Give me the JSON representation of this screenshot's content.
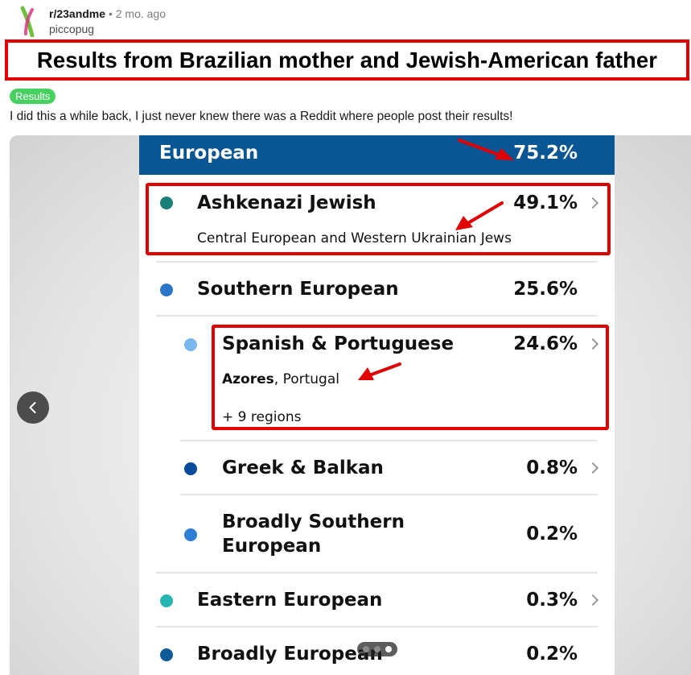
{
  "post": {
    "subreddit": "r/23andme",
    "separator": "•",
    "age": "2 mo. ago",
    "username": "piccopug",
    "title": "Results from Brazilian mother and Jewish-American father",
    "flair": "Results",
    "body": "I did this a while back, I just never knew there was a Reddit where people post their results!"
  },
  "gallery": {
    "page_count": 3,
    "active_page": 3
  },
  "ancestry": {
    "header": {
      "label": "European",
      "percent": "75.2%",
      "color": "#0a5694"
    },
    "rows": [
      {
        "name": "Ashkenazi Jewish",
        "percent": "49.1%",
        "sub": "Central European and Western Ukrainian Jews",
        "color": "#1a8078"
      },
      {
        "name": "Southern European",
        "percent": "25.6%",
        "color": "#2a76c9"
      },
      {
        "name": "Spanish & Portuguese",
        "percent": "24.6%",
        "sub_bold": "Azores",
        "sub_rest": ", Portugal",
        "more": "+ 9 regions",
        "color": "#79b7ee"
      },
      {
        "name": "Greek & Balkan",
        "percent": "0.8%",
        "color": "#0a4b9b"
      },
      {
        "name_line1": "Broadly Southern",
        "name_line2": "European",
        "percent": "0.2%",
        "color": "#2e7ed6"
      },
      {
        "name": "Eastern European",
        "percent": "0.3%",
        "color": "#27b5b3"
      },
      {
        "name": "Broadly European",
        "percent": "0.2%",
        "color": "#0f5a99"
      }
    ]
  },
  "annotation_color": "#e00000"
}
